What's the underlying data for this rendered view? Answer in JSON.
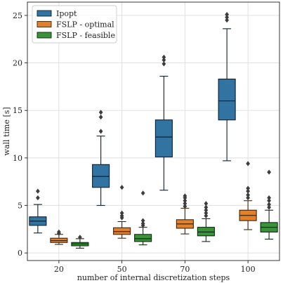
{
  "chart_data": {
    "type": "box",
    "xlabel": "number of internal discretization steps",
    "ylabel": "wall time [s]",
    "categories": [
      "20",
      "50",
      "70",
      "100"
    ],
    "ylim": [
      -0.8,
      26.4
    ],
    "yticks": [
      0,
      5,
      10,
      15,
      20,
      25
    ],
    "grid": true,
    "legend_position": "top-left",
    "series": [
      {
        "name": "Ipopt",
        "color": "#3274a1",
        "boxes": [
          {
            "whisker_low": 2.1,
            "q1": 2.9,
            "median": 3.35,
            "q3": 3.8,
            "whisker_high": 5.1,
            "outliers": [
              5.8,
              6.5
            ]
          },
          {
            "whisker_low": 5.0,
            "q1": 6.9,
            "median": 8.05,
            "q3": 9.3,
            "whisker_high": 12.3,
            "outliers": [
              12.8,
              14.3,
              14.8
            ]
          },
          {
            "whisker_low": 6.6,
            "q1": 10.1,
            "median": 12.2,
            "q3": 14.0,
            "whisker_high": 18.6,
            "outliers": [
              19.9,
              20.3,
              20.6
            ]
          },
          {
            "whisker_low": 9.7,
            "q1": 14.0,
            "median": 16.0,
            "q3": 18.3,
            "whisker_high": 23.6,
            "outliers": [
              24.5,
              24.8,
              25.1
            ]
          }
        ]
      },
      {
        "name": "FSLP - optimal",
        "color": "#e1812c",
        "boxes": [
          {
            "whisker_low": 0.9,
            "q1": 1.1,
            "median": 1.3,
            "q3": 1.55,
            "whisker_high": 1.95,
            "outliers": [
              2.05,
              2.2
            ]
          },
          {
            "whisker_low": 1.55,
            "q1": 1.95,
            "median": 2.25,
            "q3": 2.65,
            "whisker_high": 3.3,
            "outliers": [
              3.7,
              3.9,
              4.2,
              6.9
            ]
          },
          {
            "whisker_low": 2.0,
            "q1": 2.6,
            "median": 3.05,
            "q3": 3.5,
            "whisker_high": 4.7,
            "outliers": [
              4.9,
              5.2,
              5.5,
              5.8,
              6.0
            ]
          },
          {
            "whisker_low": 2.45,
            "q1": 3.4,
            "median": 3.95,
            "q3": 4.5,
            "whisker_high": 5.5,
            "outliers": [
              5.8,
              6.1,
              6.5,
              6.8,
              9.4
            ]
          }
        ]
      },
      {
        "name": "FSLP - feasible",
        "color": "#3a923a",
        "boxes": [
          {
            "whisker_low": 0.5,
            "q1": 0.75,
            "median": 0.95,
            "q3": 1.1,
            "whisker_high": 1.5,
            "outliers": [
              1.65
            ]
          },
          {
            "whisker_low": 0.85,
            "q1": 1.2,
            "median": 1.5,
            "q3": 1.95,
            "whisker_high": 2.7,
            "outliers": [
              2.9,
              3.1,
              3.4,
              6.3
            ]
          },
          {
            "whisker_low": 1.2,
            "q1": 1.8,
            "median": 2.2,
            "q3": 2.7,
            "whisker_high": 3.6,
            "outliers": [
              3.9,
              4.2,
              4.5,
              4.8,
              5.2
            ]
          },
          {
            "whisker_low": 1.45,
            "q1": 2.2,
            "median": 2.7,
            "q3": 3.2,
            "whisker_high": 4.5,
            "outliers": [
              4.8,
              5.1,
              5.5,
              5.8,
              8.5
            ]
          }
        ]
      }
    ]
  }
}
